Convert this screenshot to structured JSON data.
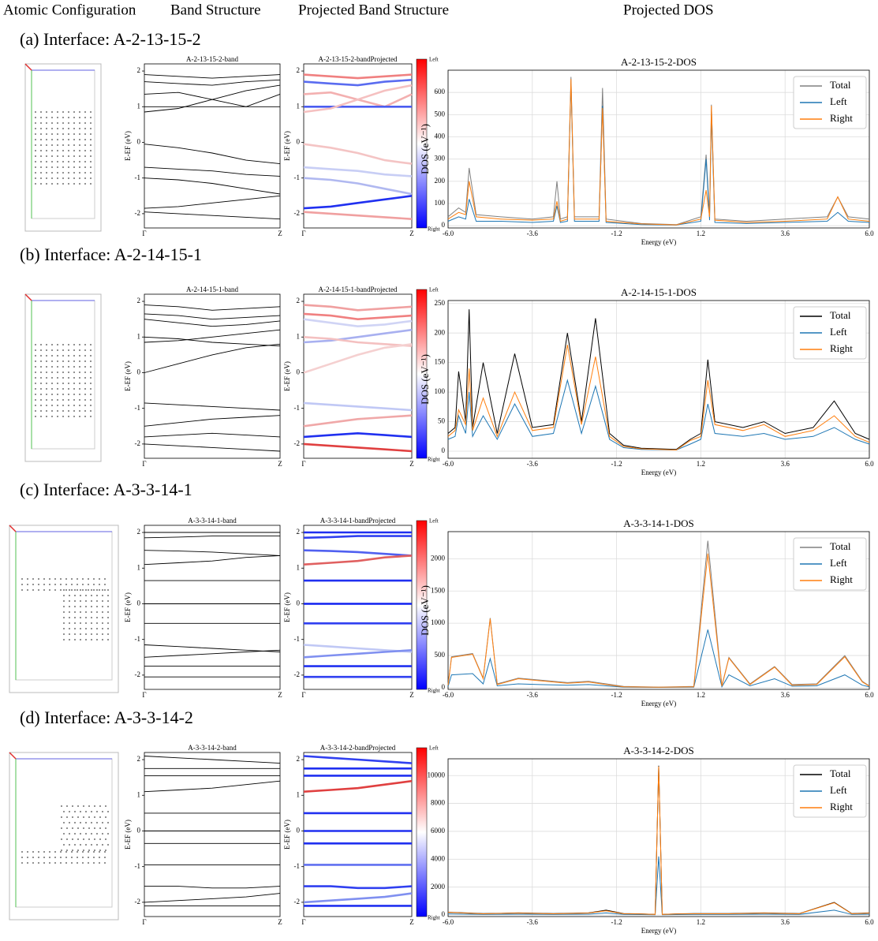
{
  "headers": [
    "Atomic Configuration",
    "Band Structure",
    "Projected Band Structure",
    "Projected DOS"
  ],
  "rows": [
    {
      "label": "(a) Interface: A-2-13-15-2"
    },
    {
      "label": "(b) Interface: A-2-14-15-1"
    },
    {
      "label": "(c) Interface: A-3-3-14-1"
    },
    {
      "label": "(d) Interface: A-3-3-14-2"
    }
  ],
  "chart_data": [
    {
      "type": "band",
      "title": "A-2-13-15-2-band",
      "ylabel": "E-EF (eV)",
      "categories": [
        "Γ",
        null,
        null,
        null,
        "Z"
      ],
      "ylim": [
        -2.4,
        2.2
      ],
      "yticks": [
        -2,
        -1,
        0,
        1,
        2
      ],
      "color": "#000000",
      "series": [
        {
          "values": [
            1.9,
            1.85,
            1.8,
            1.85,
            1.9
          ]
        },
        {
          "values": [
            1.7,
            1.65,
            1.6,
            1.7,
            1.75
          ]
        },
        {
          "values": [
            1.35,
            1.4,
            1.2,
            1.0,
            1.35
          ]
        },
        {
          "values": [
            1.0,
            1.0,
            1.0,
            1.0,
            1.0
          ]
        },
        {
          "values": [
            0.85,
            0.95,
            1.2,
            1.45,
            1.6
          ]
        },
        {
          "values": [
            -0.05,
            -0.15,
            -0.3,
            -0.5,
            -0.6
          ]
        },
        {
          "values": [
            -0.7,
            -0.75,
            -0.8,
            -0.9,
            -0.95
          ]
        },
        {
          "values": [
            -1.0,
            -1.05,
            -1.15,
            -1.3,
            -1.45
          ]
        },
        {
          "values": [
            -1.85,
            -1.8,
            -1.7,
            -1.6,
            -1.5
          ]
        },
        {
          "values": [
            -1.95,
            -2.0,
            -2.05,
            -2.1,
            -2.15
          ]
        }
      ]
    },
    {
      "type": "projected-band",
      "title": "A-2-13-15-2-bandProjected",
      "ylabel": "E-EF (eV)",
      "colorbar_top": "Left",
      "colorbar_bottom": "Right",
      "band_colors": [
        "#f08080",
        "#5a6cf0",
        "#f3b0b0",
        "#4a5cf0",
        "#f5c0c0",
        "#f4c4c4",
        "#c8cef5",
        "#b0b8f0",
        "#2030f0",
        "#f0a0a0"
      ]
    },
    {
      "type": "dos",
      "title": "A-2-13-15-2-DOS",
      "xlabel": "Energy (eV)",
      "ylabel": "DOS (eV⁻¹)",
      "legend": "upper right",
      "grid": true,
      "xlim": [
        -6,
        6
      ],
      "xticks": [
        {
          "value": -6,
          "label": "-6.0"
        },
        -3.6,
        -1.2,
        1.2,
        3.6,
        {
          "value": 6,
          "label": "6.0"
        }
      ],
      "ylim": [
        -10,
        700
      ],
      "yticks": [
        0,
        100,
        200,
        300,
        400,
        500,
        600
      ],
      "x": [
        -6,
        -5.7,
        -5.5,
        -5.4,
        -5.2,
        -4.5,
        -3.6,
        -3.0,
        -2.9,
        -2.8,
        -2.6,
        -2.5,
        -2.4,
        -1.7,
        -1.6,
        -1.5,
        -0.5,
        0.5,
        1.2,
        1.35,
        1.45,
        1.5,
        1.6,
        2.5,
        3.6,
        4.8,
        5.1,
        5.4,
        6
      ],
      "series": [
        {
          "name": "Total",
          "color": "#808080",
          "values": [
            40,
            80,
            60,
            260,
            50,
            40,
            30,
            40,
            200,
            30,
            40,
            670,
            40,
            40,
            620,
            30,
            10,
            5,
            40,
            320,
            50,
            545,
            30,
            20,
            30,
            40,
            130,
            40,
            30
          ]
        },
        {
          "name": "Left",
          "color": "#1f77b4",
          "values": [
            20,
            40,
            30,
            120,
            20,
            20,
            15,
            20,
            90,
            15,
            20,
            640,
            20,
            20,
            540,
            15,
            5,
            3,
            20,
            300,
            25,
            500,
            15,
            10,
            15,
            20,
            60,
            20,
            15
          ]
        },
        {
          "name": "Right",
          "color": "#ff7f0e",
          "values": [
            30,
            60,
            50,
            200,
            40,
            30,
            25,
            30,
            110,
            20,
            30,
            660,
            30,
            30,
            530,
            20,
            8,
            4,
            30,
            160,
            40,
            540,
            25,
            15,
            20,
            30,
            130,
            30,
            20
          ]
        }
      ]
    },
    {
      "type": "band",
      "title": "A-2-14-15-1-band",
      "ylabel": "E-EF (eV)",
      "categories": [
        "Γ",
        null,
        null,
        null,
        "Z"
      ],
      "ylim": [
        -2.4,
        2.2
      ],
      "yticks": [
        -2,
        -1,
        0,
        1,
        2
      ],
      "color": "#000000",
      "series": [
        {
          "values": [
            1.9,
            1.85,
            1.75,
            1.8,
            1.85
          ]
        },
        {
          "values": [
            1.65,
            1.6,
            1.5,
            1.55,
            1.6
          ]
        },
        {
          "values": [
            1.5,
            1.4,
            1.3,
            1.35,
            1.45
          ]
        },
        {
          "values": [
            0.85,
            0.9,
            1.0,
            1.1,
            1.2
          ]
        },
        {
          "values": [
            1.0,
            0.95,
            0.85,
            0.8,
            0.75
          ]
        },
        {
          "values": [
            0.0,
            0.25,
            0.5,
            0.7,
            0.8
          ]
        },
        {
          "values": [
            -0.85,
            -0.9,
            -0.95,
            -1.0,
            -1.05
          ]
        },
        {
          "values": [
            -1.5,
            -1.4,
            -1.3,
            -1.25,
            -1.2
          ]
        },
        {
          "values": [
            -1.8,
            -1.75,
            -1.7,
            -1.75,
            -1.8
          ]
        },
        {
          "values": [
            -2.0,
            -2.05,
            -2.1,
            -2.15,
            -2.2
          ]
        }
      ]
    },
    {
      "type": "projected-band",
      "title": "A-2-14-15-1-bandProjected",
      "ylabel": "E-EF (eV)",
      "colorbar_top": "Left",
      "colorbar_bottom": "Right",
      "band_colors": [
        "#f0a0a0",
        "#f08080",
        "#d0d4f5",
        "#a8b0f0",
        "#f4c0c0",
        "#f5d0d0",
        "#c0c8f5",
        "#f0a8a8",
        "#2030f0",
        "#e04040"
      ]
    },
    {
      "type": "dos",
      "title": "A-2-14-15-1-DOS",
      "xlabel": "Energy (eV)",
      "ylabel": "DOS (eV⁻¹)",
      "legend": "upper right",
      "grid": true,
      "xlim": [
        -6,
        6
      ],
      "xticks": [
        {
          "value": -6,
          "label": "-6.0"
        },
        -3.6,
        -1.2,
        1.2,
        3.6,
        {
          "value": 6,
          "label": "6.0"
        }
      ],
      "ylim": [
        -12,
        255
      ],
      "yticks": [
        0,
        50,
        100,
        150,
        200,
        250
      ],
      "x": [
        -6,
        -5.8,
        -5.7,
        -5.5,
        -5.4,
        -5.3,
        -5.0,
        -4.6,
        -4.1,
        -3.6,
        -3.0,
        -2.6,
        -2.2,
        -1.8,
        -1.4,
        -1.0,
        -0.5,
        0.5,
        0.9,
        1.2,
        1.4,
        1.6,
        2.4,
        3.0,
        3.6,
        4.4,
        5.0,
        5.6,
        6
      ],
      "series": [
        {
          "name": "Total",
          "color": "#000000",
          "values": [
            30,
            40,
            135,
            50,
            240,
            40,
            150,
            30,
            165,
            40,
            45,
            200,
            50,
            225,
            30,
            10,
            5,
            3,
            20,
            30,
            155,
            50,
            40,
            50,
            30,
            40,
            85,
            30,
            20
          ]
        },
        {
          "name": "Left",
          "color": "#1f77b4",
          "values": [
            20,
            25,
            60,
            30,
            100,
            25,
            60,
            20,
            80,
            25,
            30,
            120,
            30,
            110,
            20,
            6,
            3,
            2,
            12,
            20,
            80,
            30,
            25,
            30,
            20,
            25,
            40,
            20,
            12
          ]
        },
        {
          "name": "Right",
          "color": "#ff7f0e",
          "values": [
            25,
            35,
            70,
            45,
            140,
            35,
            90,
            25,
            100,
            35,
            40,
            180,
            45,
            160,
            25,
            8,
            4,
            2,
            18,
            25,
            120,
            45,
            35,
            45,
            25,
            35,
            60,
            25,
            15
          ]
        }
      ]
    },
    {
      "type": "band",
      "title": "A-3-3-14-1-band",
      "ylabel": "E-EF (eV)",
      "categories": [
        "Γ",
        null,
        null,
        null,
        "Z"
      ],
      "ylim": [
        -2.4,
        2.2
      ],
      "yticks": [
        -2,
        -1,
        0,
        1,
        2
      ],
      "color": "#000000",
      "series": [
        {
          "values": [
            2.0,
            2.0,
            2.0,
            2.0,
            2.0
          ]
        },
        {
          "values": [
            1.85,
            1.87,
            1.9,
            1.9,
            1.9
          ]
        },
        {
          "values": [
            1.5,
            1.48,
            1.45,
            1.4,
            1.35
          ]
        },
        {
          "values": [
            1.1,
            1.15,
            1.2,
            1.3,
            1.35
          ]
        },
        {
          "values": [
            0.65,
            0.65,
            0.65,
            0.65,
            0.65
          ]
        },
        {
          "values": [
            0.0,
            0.0,
            0.0,
            0.0,
            0.0
          ]
        },
        {
          "values": [
            -0.55,
            -0.55,
            -0.55,
            -0.55,
            -0.55
          ]
        },
        {
          "values": [
            -1.15,
            -1.2,
            -1.25,
            -1.3,
            -1.35
          ]
        },
        {
          "values": [
            -1.5,
            -1.45,
            -1.4,
            -1.35,
            -1.3
          ]
        },
        {
          "values": [
            -1.75,
            -1.75,
            -1.75,
            -1.75,
            -1.75
          ]
        },
        {
          "values": [
            -2.05,
            -2.05,
            -2.05,
            -2.05,
            -2.05
          ]
        }
      ]
    },
    {
      "type": "projected-band",
      "title": "A-3-3-14-1-bandProjected",
      "ylabel": "E-EF (eV)",
      "colorbar_top": "Left",
      "colorbar_bottom": "Right",
      "band_colors": [
        "#2030f0",
        "#3040f0",
        "#5060f0",
        "#e06060",
        "#2030f0",
        "#1020f0",
        "#3040f0",
        "#c0c8f5",
        "#8090f0",
        "#2030f0",
        "#3040f0"
      ]
    },
    {
      "type": "dos",
      "title": "A-3-3-14-1-DOS",
      "xlabel": "Energy (eV)",
      "ylabel": "DOS (eV⁻¹)",
      "legend": "upper right",
      "grid": true,
      "xlim": [
        -6,
        6
      ],
      "xticks": [
        {
          "value": -6,
          "label": "-6.0"
        },
        -3.6,
        -1.2,
        1.2,
        3.6,
        {
          "value": 6,
          "label": "6.0"
        }
      ],
      "ylim": [
        -25,
        2420
      ],
      "yticks": [
        0,
        500,
        1000,
        1500,
        2000
      ],
      "x": [
        -6,
        -5.9,
        -5.3,
        -5.0,
        -4.8,
        -4.6,
        -4.0,
        -3.4,
        -2.6,
        -2.0,
        -1.5,
        -1.0,
        0,
        1.0,
        1.4,
        1.8,
        2.0,
        2.6,
        3.3,
        3.8,
        4.5,
        5.3,
        5.8,
        6
      ],
      "series": [
        {
          "name": "Total",
          "color": "#808080",
          "values": [
            50,
            480,
            530,
            150,
            1080,
            60,
            150,
            120,
            80,
            100,
            60,
            20,
            10,
            20,
            2280,
            30,
            470,
            60,
            330,
            50,
            60,
            500,
            100,
            30
          ]
        },
        {
          "name": "Left",
          "color": "#1f77b4",
          "values": [
            20,
            200,
            220,
            60,
            450,
            30,
            60,
            50,
            40,
            50,
            30,
            10,
            5,
            10,
            900,
            15,
            200,
            30,
            140,
            25,
            30,
            200,
            40,
            15
          ]
        },
        {
          "name": "Right",
          "color": "#ff7f0e",
          "values": [
            40,
            470,
            520,
            140,
            1070,
            50,
            140,
            110,
            70,
            90,
            50,
            15,
            8,
            15,
            2080,
            25,
            460,
            50,
            320,
            40,
            50,
            480,
            90,
            25
          ]
        }
      ]
    },
    {
      "type": "band",
      "title": "A-3-3-14-2-band",
      "ylabel": "E-EF (eV)",
      "categories": [
        "Γ",
        null,
        null,
        null,
        "Z"
      ],
      "ylim": [
        -2.4,
        2.2
      ],
      "yticks": [
        -2,
        -1,
        0,
        1,
        2
      ],
      "color": "#000000",
      "series": [
        {
          "values": [
            2.1,
            2.05,
            2.0,
            1.95,
            1.9
          ]
        },
        {
          "values": [
            1.75,
            1.75,
            1.75,
            1.75,
            1.75
          ]
        },
        {
          "values": [
            1.55,
            1.55,
            1.55,
            1.55,
            1.55
          ]
        },
        {
          "values": [
            1.1,
            1.15,
            1.2,
            1.3,
            1.4
          ]
        },
        {
          "values": [
            0.5,
            0.5,
            0.5,
            0.5,
            0.5
          ]
        },
        {
          "values": [
            0.0,
            0.0,
            0.0,
            0.0,
            0.0
          ]
        },
        {
          "values": [
            -0.35,
            -0.35,
            -0.35,
            -0.35,
            -0.35
          ]
        },
        {
          "values": [
            -0.95,
            -0.95,
            -0.95,
            -0.95,
            -0.95
          ]
        },
        {
          "values": [
            -1.55,
            -1.55,
            -1.6,
            -1.6,
            -1.55
          ]
        },
        {
          "values": [
            -2.0,
            -1.95,
            -1.9,
            -1.85,
            -1.75
          ]
        },
        {
          "values": [
            -2.1,
            -2.1,
            -2.1,
            -2.1,
            -2.1
          ]
        }
      ]
    },
    {
      "type": "projected-band",
      "title": "A-3-3-14-2-bandProjected",
      "ylabel": "E-EF (eV)",
      "colorbar_top": "Left",
      "colorbar_bottom": "Right",
      "band_colors": [
        "#3040f0",
        "#2030f0",
        "#2030f0",
        "#e04040",
        "#2030f0",
        "#2030f0",
        "#2030f0",
        "#6070f0",
        "#3040f0",
        "#8090f0",
        "#2030f0"
      ]
    },
    {
      "type": "dos",
      "title": "A-3-3-14-2-DOS",
      "xlabel": "Energy (eV)",
      "legend": "upper right",
      "grid": true,
      "xlim": [
        -6,
        6
      ],
      "xticks": [
        {
          "value": -6,
          "label": "-6.0"
        },
        -3.6,
        -1.2,
        1.2,
        3.6,
        {
          "value": 6,
          "label": "6.0"
        }
      ],
      "ylim": [
        -110,
        11200
      ],
      "yticks": [
        0,
        2000,
        4000,
        6000,
        8000,
        10000
      ],
      "x": [
        -6,
        -5,
        -4,
        -3,
        -2,
        -1.5,
        -1,
        -0.5,
        -0.1,
        0,
        0.1,
        0.5,
        1,
        2,
        3,
        4,
        5,
        5.5,
        6
      ],
      "series": [
        {
          "name": "Total",
          "color": "#000000",
          "values": [
            200,
            100,
            150,
            100,
            150,
            350,
            100,
            80,
            50,
            10700,
            50,
            80,
            100,
            100,
            150,
            100,
            900,
            100,
            150
          ]
        },
        {
          "name": "Left",
          "color": "#1f77b4",
          "values": [
            80,
            40,
            60,
            40,
            60,
            150,
            40,
            30,
            20,
            4200,
            20,
            30,
            40,
            40,
            60,
            40,
            350,
            40,
            60
          ]
        },
        {
          "name": "Right",
          "color": "#ff7f0e",
          "values": [
            190,
            90,
            140,
            90,
            140,
            300,
            90,
            70,
            45,
            10650,
            45,
            70,
            90,
            90,
            140,
            90,
            880,
            90,
            140
          ]
        }
      ]
    }
  ]
}
